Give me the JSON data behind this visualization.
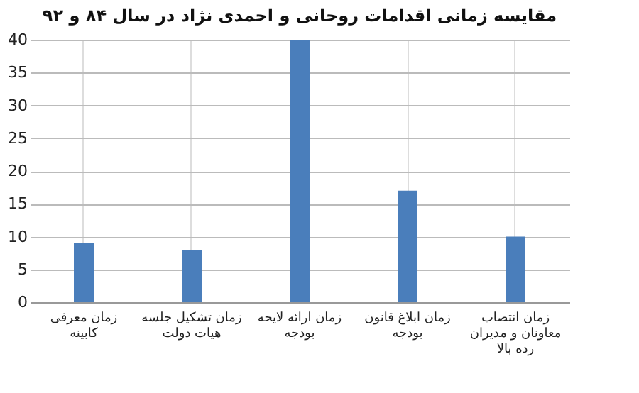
{
  "chart_data": {
    "type": "bar",
    "title": "مقایسه زمانی اقدامات روحانی و احمدی نژاد در سال ۸۴ و ۹۲",
    "categories": [
      "زمان معرفی کابینه",
      "زمان تشکیل جلسه هیات دولت",
      "زمان ارائه لایحه بودجه",
      "زمان ابلاغ قانون بودجه",
      "زمان انتصاب معاونان و مدیران رده بالا"
    ],
    "values": [
      9,
      8,
      40,
      17,
      10
    ],
    "color": "#4a7ebb",
    "ylim": [
      0,
      40
    ],
    "yticks": [
      0,
      5,
      10,
      15,
      20,
      25,
      30,
      35,
      40
    ],
    "grid": true
  }
}
